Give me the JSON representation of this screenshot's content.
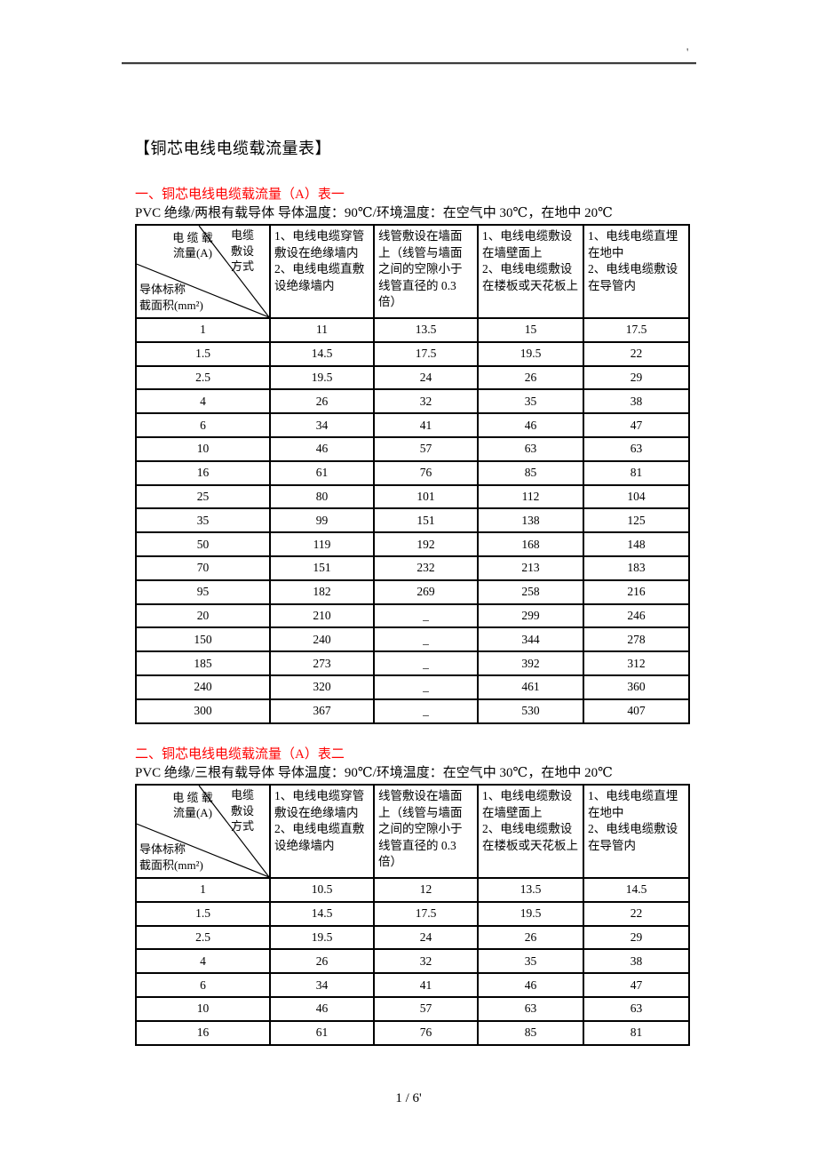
{
  "page": {
    "top_mark": "'",
    "title": "【铜芯电线电缆载流量表】",
    "footer_page_number": "1 / 6'"
  },
  "colors": {
    "heading_red": "#ff0000",
    "text": "#000000",
    "border": "#000000"
  },
  "tables": [
    {
      "heading": "一、铜芯电线电缆载流量（A）表一",
      "condition_line": "PVC 绝缘/两根有载导体 导体温度：90℃/环境温度：在空气中 30℃，在地中 20℃",
      "corner": {
        "current_lines": [
          "电 缆 载",
          "流量(A)"
        ],
        "method_lines": [
          "电缆",
          "敷设",
          "方式"
        ],
        "conductor_lines": [
          "导体标称",
          "截面积(mm²)"
        ]
      },
      "method_columns": [
        [
          "1、电线电缆穿管敷设在绝缘墙内",
          "2、电线电缆直敷设绝缘墙内"
        ],
        [
          "线管敷设在墙面上（线管与墙面之间的空隙小于线管直径的 0.3 倍）"
        ],
        [
          "1、电线电缆敷设在墙壁面上",
          "2、电线电缆敷设在楼板或天花板上"
        ],
        [
          "1、电线电缆直埋在地中",
          "2、电线电缆敷设在导管内"
        ]
      ],
      "rows": [
        [
          "1",
          "11",
          "13.5",
          "15",
          "17.5"
        ],
        [
          "1.5",
          "14.5",
          "17.5",
          "19.5",
          "22"
        ],
        [
          "2.5",
          "19.5",
          "24",
          "26",
          "29"
        ],
        [
          "4",
          "26",
          "32",
          "35",
          "38"
        ],
        [
          "6",
          "34",
          "41",
          "46",
          "47"
        ],
        [
          "10",
          "46",
          "57",
          "63",
          "63"
        ],
        [
          "16",
          "61",
          "76",
          "85",
          "81"
        ],
        [
          "25",
          "80",
          "101",
          "112",
          "104"
        ],
        [
          "35",
          "99",
          "151",
          "138",
          "125"
        ],
        [
          "50",
          "119",
          "192",
          "168",
          "148"
        ],
        [
          "70",
          "151",
          "232",
          "213",
          "183"
        ],
        [
          "95",
          "182",
          "269",
          "258",
          "216"
        ],
        [
          "20",
          "210",
          "_",
          "299",
          "246"
        ],
        [
          "150",
          "240",
          "_",
          "344",
          "278"
        ],
        [
          "185",
          "273",
          "_",
          "392",
          "312"
        ],
        [
          "240",
          "320",
          "_",
          "461",
          "360"
        ],
        [
          "300",
          "367",
          "_",
          "530",
          "407"
        ]
      ]
    },
    {
      "heading": "二、铜芯电线电缆载流量（A）表二",
      "condition_line": "PVC 绝缘/三根有载导体 导体温度：90℃/环境温度：在空气中 30℃，在地中 20℃",
      "corner": {
        "current_lines": [
          "电 缆 载",
          "流量(A)"
        ],
        "method_lines": [
          "电缆",
          "敷设",
          "方式"
        ],
        "conductor_lines": [
          "导体标称",
          "截面积(mm²)"
        ]
      },
      "method_columns": [
        [
          "1、电线电缆穿管敷设在绝缘墙内",
          "2、电线电缆直敷设绝缘墙内"
        ],
        [
          "线管敷设在墙面上（线管与墙面之间的空隙小于线管直径的 0.3 倍）"
        ],
        [
          "1、电线电缆敷设在墙壁面上",
          "2、电线电缆敷设在楼板或天花板上"
        ],
        [
          "1、电线电缆直埋在地中",
          "2、电线电缆敷设在导管内"
        ]
      ],
      "rows": [
        [
          "1",
          "10.5",
          "12",
          "13.5",
          "14.5"
        ],
        [
          "1.5",
          "14.5",
          "17.5",
          "19.5",
          "22"
        ],
        [
          "2.5",
          "19.5",
          "24",
          "26",
          "29"
        ],
        [
          "4",
          "26",
          "32",
          "35",
          "38"
        ],
        [
          "6",
          "34",
          "41",
          "46",
          "47"
        ],
        [
          "10",
          "46",
          "57",
          "63",
          "63"
        ],
        [
          "16",
          "61",
          "76",
          "85",
          "81"
        ]
      ]
    }
  ],
  "layout_tops": [
    211,
    841
  ]
}
